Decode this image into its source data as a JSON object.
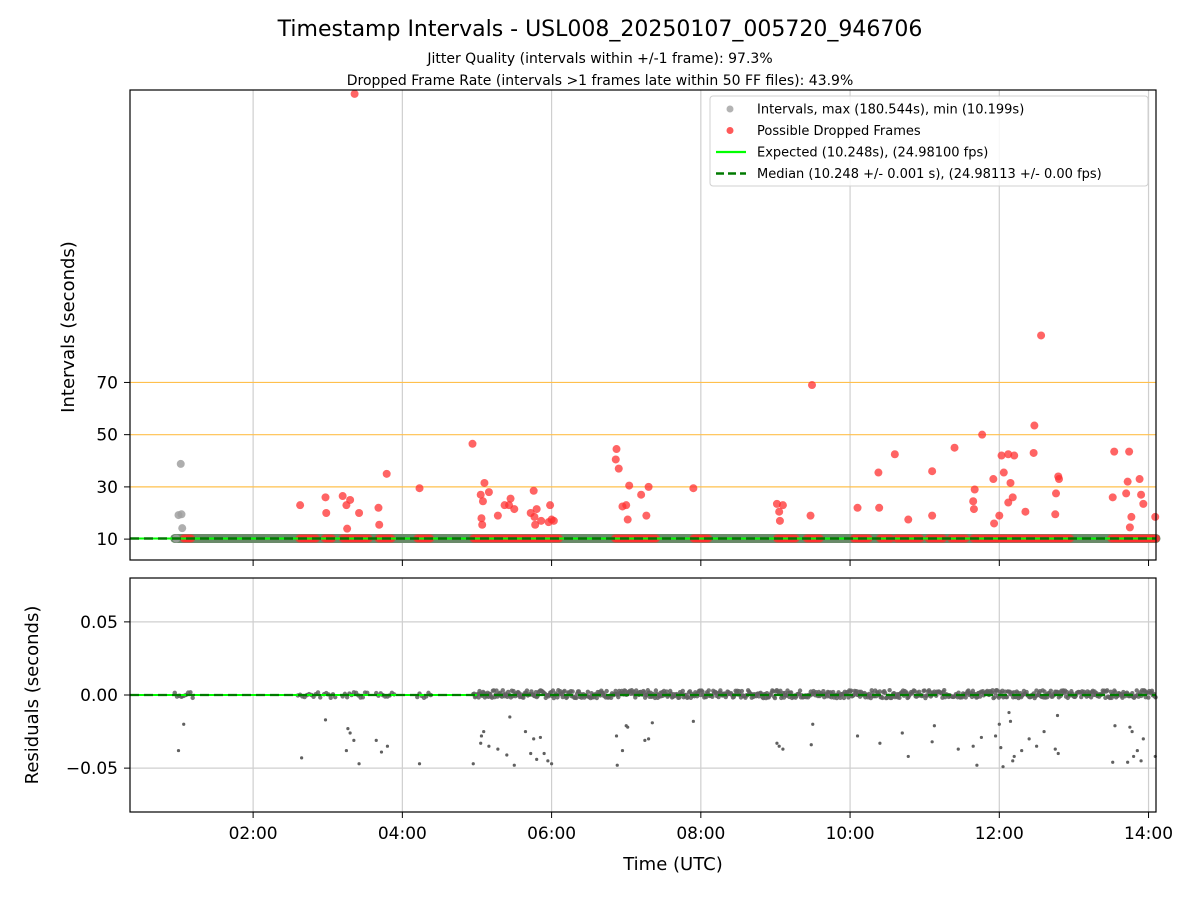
{
  "title": "Timestamp Intervals - USL008_20250107_005720_946706",
  "subtitle_1": "Jitter Quality (intervals within +/-1 frame): 97.3%",
  "subtitle_2": "Dropped Frame Rate (intervals >1 frames late within 50 FF files): 43.9%",
  "colors": {
    "interval_gray": "#a0a0a0",
    "dropped_red": "#ff3030",
    "expected_green": "#00ff00",
    "median_darkgreen": "#007a00",
    "threshold_orange": "#ffc04d",
    "residual_gray": "#606060"
  },
  "chart_data": [
    {
      "type": "scatter",
      "panel": "top",
      "xlabel": "",
      "ylabel": "Intervals (seconds)",
      "x_unit": "hours UTC",
      "xlim": [
        0.35,
        14.1
      ],
      "ylim": [
        2,
        182
      ],
      "y_ticks": [
        10,
        30,
        50,
        70
      ],
      "x_ticks": [
        2,
        4,
        6,
        8,
        10,
        12,
        14
      ],
      "x_tick_labels": [
        "02:00",
        "04:00",
        "06:00",
        "08:00",
        "10:00",
        "12:00",
        "14:00"
      ],
      "threshold_lines": [
        30,
        50,
        70
      ],
      "grid": "vertical",
      "legend_position": "top-right",
      "legend": [
        {
          "label": "Intervals, max (180.544s), min (10.199s)",
          "kind": "marker",
          "color": "#a0a0a0"
        },
        {
          "label": "Possible Dropped Frames",
          "kind": "marker",
          "color": "#ff3030"
        },
        {
          "label": "Expected (10.248s), (24.98100 fps)",
          "kind": "line",
          "color": "#00ff00"
        },
        {
          "label": "Median (10.248 +/- 0.001 s), (24.98113 +/- 0.00 fps)",
          "kind": "dashed",
          "color": "#007a00"
        }
      ],
      "expected_value": 10.248,
      "median_value": 10.248,
      "baseline_band": {
        "x_start": 0.95,
        "x_end": 14.1,
        "y": 10.25
      },
      "gray_points": [
        [
          0.97,
          10.2
        ],
        [
          1.0,
          19.2
        ],
        [
          1.04,
          19.5
        ],
        [
          1.03,
          38.8
        ],
        [
          1.05,
          14.2
        ]
      ],
      "red_baseline_ranges": [
        [
          1.07,
          1.18
        ],
        [
          2.62,
          2.85
        ],
        [
          2.96,
          3.08
        ],
        [
          3.2,
          3.55
        ],
        [
          3.68,
          3.87
        ],
        [
          4.2,
          4.38
        ],
        [
          4.95,
          6.1
        ],
        [
          6.85,
          7.42
        ],
        [
          7.9,
          8.1
        ],
        [
          9.02,
          9.28
        ],
        [
          9.42,
          9.6
        ],
        [
          10.05,
          10.25
        ],
        [
          10.4,
          10.55
        ],
        [
          10.62,
          10.95
        ],
        [
          11.05,
          11.25
        ],
        [
          11.35,
          11.55
        ],
        [
          11.65,
          12.95
        ],
        [
          13.5,
          14.1
        ]
      ],
      "red_points": [
        [
          3.36,
          180.5
        ],
        [
          9.49,
          69.0
        ],
        [
          12.56,
          88.0
        ],
        [
          2.63,
          23.0
        ],
        [
          2.97,
          26.0
        ],
        [
          2.98,
          20.0
        ],
        [
          3.2,
          26.5
        ],
        [
          3.25,
          23.0
        ],
        [
          3.26,
          14.0
        ],
        [
          3.3,
          25.0
        ],
        [
          3.42,
          20.0
        ],
        [
          3.68,
          22.0
        ],
        [
          3.69,
          15.5
        ],
        [
          3.79,
          35.0
        ],
        [
          4.23,
          29.5
        ],
        [
          4.94,
          46.5
        ],
        [
          5.05,
          27.0
        ],
        [
          5.06,
          18.0
        ],
        [
          5.07,
          15.5
        ],
        [
          5.08,
          24.5
        ],
        [
          5.1,
          31.5
        ],
        [
          5.16,
          28.0
        ],
        [
          5.28,
          19.0
        ],
        [
          5.37,
          23.0
        ],
        [
          5.43,
          23.0
        ],
        [
          5.45,
          25.5
        ],
        [
          5.5,
          21.5
        ],
        [
          5.72,
          20.0
        ],
        [
          5.76,
          28.5
        ],
        [
          5.77,
          18.5
        ],
        [
          5.8,
          21.5
        ],
        [
          5.78,
          15.5
        ],
        [
          5.86,
          17.0
        ],
        [
          5.96,
          16.5
        ],
        [
          5.98,
          23.0
        ],
        [
          6.0,
          17.5
        ],
        [
          6.03,
          17.0
        ],
        [
          6.87,
          44.5
        ],
        [
          6.86,
          40.5
        ],
        [
          6.9,
          37.0
        ],
        [
          6.95,
          22.5
        ],
        [
          7.0,
          23.0
        ],
        [
          7.02,
          17.5
        ],
        [
          7.04,
          30.5
        ],
        [
          7.2,
          27.0
        ],
        [
          7.27,
          19.0
        ],
        [
          7.3,
          30.0
        ],
        [
          7.9,
          29.5
        ],
        [
          9.02,
          23.5
        ],
        [
          9.05,
          20.5
        ],
        [
          9.06,
          17.0
        ],
        [
          9.1,
          23.0
        ],
        [
          9.47,
          19.0
        ],
        [
          10.1,
          22.0
        ],
        [
          10.38,
          35.5
        ],
        [
          10.39,
          22.0
        ],
        [
          10.6,
          42.5
        ],
        [
          10.78,
          17.5
        ],
        [
          11.1,
          19.0
        ],
        [
          11.1,
          36.0
        ],
        [
          11.4,
          45.0
        ],
        [
          11.65,
          24.5
        ],
        [
          11.67,
          29.0
        ],
        [
          11.66,
          21.5
        ],
        [
          11.77,
          50.0
        ],
        [
          11.92,
          33.0
        ],
        [
          11.93,
          16.0
        ],
        [
          12.0,
          19.0
        ],
        [
          12.03,
          42.0
        ],
        [
          12.06,
          35.5
        ],
        [
          12.12,
          42.5
        ],
        [
          12.15,
          31.5
        ],
        [
          12.18,
          26.0
        ],
        [
          12.12,
          24.0
        ],
        [
          12.2,
          42.0
        ],
        [
          12.35,
          20.5
        ],
        [
          12.46,
          43.0
        ],
        [
          12.47,
          53.5
        ],
        [
          12.75,
          19.5
        ],
        [
          12.76,
          27.5
        ],
        [
          12.79,
          34.0
        ],
        [
          12.8,
          33.0
        ],
        [
          13.52,
          26.0
        ],
        [
          13.54,
          43.5
        ],
        [
          13.7,
          27.5
        ],
        [
          13.72,
          32.0
        ],
        [
          13.74,
          43.5
        ],
        [
          13.75,
          14.5
        ],
        [
          13.77,
          18.5
        ],
        [
          13.88,
          33.0
        ],
        [
          13.9,
          27.0
        ],
        [
          13.93,
          23.5
        ],
        [
          14.09,
          18.5
        ]
      ]
    },
    {
      "type": "scatter",
      "panel": "bottom",
      "xlabel": "Time (UTC)",
      "ylabel": "Residuals (seconds)",
      "x_unit": "hours UTC",
      "xlim": [
        0.35,
        14.1
      ],
      "ylim": [
        -0.08,
        0.08
      ],
      "y_ticks": [
        0.05,
        0.0,
        -0.05
      ],
      "y_tick_labels": [
        "0.05",
        "0.00",
        "−0.05"
      ],
      "x_ticks": [
        2,
        4,
        6,
        8,
        10,
        12,
        14
      ],
      "x_tick_labels": [
        "02:00",
        "04:00",
        "06:00",
        "08:00",
        "10:00",
        "12:00",
        "14:00"
      ],
      "grid": "both",
      "zero_lines": [
        0.0
      ],
      "dense_band": {
        "x_start": 4.95,
        "x_end": 14.1,
        "y_min": -0.006,
        "y_max": 0.006
      },
      "sparse_band_ranges": [
        [
          0.95,
          1.2
        ],
        [
          2.6,
          2.9
        ],
        [
          2.95,
          3.1
        ],
        [
          3.2,
          3.55
        ],
        [
          3.65,
          3.9
        ],
        [
          4.2,
          4.4
        ]
      ],
      "points": [
        [
          1.0,
          -0.038
        ],
        [
          1.07,
          -0.02
        ],
        [
          1.05,
          -0.001
        ],
        [
          2.65,
          -0.043
        ],
        [
          2.97,
          -0.017
        ],
        [
          3.25,
          -0.038
        ],
        [
          3.27,
          -0.023
        ],
        [
          3.3,
          -0.026
        ],
        [
          3.35,
          -0.031
        ],
        [
          3.42,
          -0.047
        ],
        [
          3.65,
          -0.031
        ],
        [
          3.72,
          -0.039
        ],
        [
          3.8,
          -0.035
        ],
        [
          4.23,
          -0.047
        ],
        [
          4.95,
          -0.047
        ],
        [
          5.05,
          -0.033
        ],
        [
          5.06,
          -0.028
        ],
        [
          5.09,
          -0.025
        ],
        [
          5.16,
          -0.035
        ],
        [
          5.28,
          -0.037
        ],
        [
          5.4,
          -0.041
        ],
        [
          5.44,
          -0.015
        ],
        [
          5.5,
          -0.048
        ],
        [
          5.65,
          -0.025
        ],
        [
          5.72,
          -0.04
        ],
        [
          5.76,
          -0.03
        ],
        [
          5.8,
          -0.044
        ],
        [
          5.85,
          -0.029
        ],
        [
          5.9,
          -0.04
        ],
        [
          5.95,
          -0.045
        ],
        [
          6.0,
          -0.047
        ],
        [
          6.87,
          -0.028
        ],
        [
          6.88,
          -0.048
        ],
        [
          6.95,
          -0.038
        ],
        [
          7.0,
          -0.021
        ],
        [
          7.02,
          -0.022
        ],
        [
          7.25,
          -0.031
        ],
        [
          7.3,
          -0.03
        ],
        [
          7.35,
          -0.019
        ],
        [
          7.9,
          -0.018
        ],
        [
          9.02,
          -0.033
        ],
        [
          9.05,
          -0.035
        ],
        [
          9.1,
          -0.037
        ],
        [
          9.48,
          -0.034
        ],
        [
          9.5,
          -0.02
        ],
        [
          10.1,
          -0.028
        ],
        [
          10.4,
          -0.033
        ],
        [
          10.7,
          -0.026
        ],
        [
          10.78,
          -0.042
        ],
        [
          11.1,
          -0.032
        ],
        [
          11.13,
          -0.021
        ],
        [
          11.45,
          -0.037
        ],
        [
          11.65,
          -0.035
        ],
        [
          11.7,
          -0.048
        ],
        [
          11.76,
          -0.029
        ],
        [
          11.95,
          -0.028
        ],
        [
          12.0,
          -0.02
        ],
        [
          12.02,
          -0.036
        ],
        [
          12.05,
          -0.049
        ],
        [
          12.13,
          -0.012
        ],
        [
          12.15,
          -0.018
        ],
        [
          12.18,
          -0.045
        ],
        [
          12.2,
          -0.042
        ],
        [
          12.3,
          -0.038
        ],
        [
          12.4,
          -0.03
        ],
        [
          12.5,
          -0.035
        ],
        [
          12.6,
          -0.025
        ],
        [
          12.75,
          -0.037
        ],
        [
          12.79,
          -0.04
        ],
        [
          12.78,
          -0.014
        ],
        [
          13.52,
          -0.046
        ],
        [
          13.55,
          -0.021
        ],
        [
          13.72,
          -0.046
        ],
        [
          13.75,
          -0.022
        ],
        [
          13.78,
          -0.025
        ],
        [
          13.8,
          -0.042
        ],
        [
          13.85,
          -0.038
        ],
        [
          13.9,
          -0.045
        ],
        [
          13.93,
          -0.03
        ],
        [
          14.09,
          -0.042
        ]
      ]
    }
  ]
}
